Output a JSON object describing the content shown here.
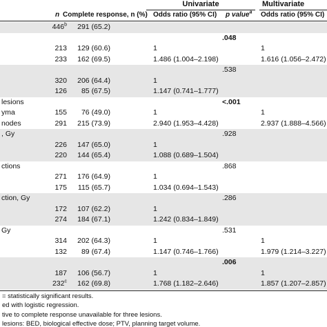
{
  "header": {
    "univariate": "Univariate",
    "multivariate": "Multivariate",
    "columns": {
      "n": "n",
      "complete_response": "Complete response, n (%)",
      "or_uni": "Odds ratio (95% CI)",
      "p": "p value",
      "p_note": "a",
      "or_multi": "Odds ratio (95% CI)"
    }
  },
  "rows": [
    {
      "n": "446",
      "n_note": "b",
      "cr": "291 (65.2)"
    },
    {
      "p": ".048"
    },
    {
      "n": "213",
      "cr": "129 (60.6)",
      "or_uni": "1",
      "or_multi": "1"
    },
    {
      "n": "233",
      "cr": "162 (69.5)",
      "or_uni": "1.486 (1.004–2.198)",
      "or_multi": "1.616 (1.056–2.472)"
    },
    {
      "p": ".538"
    },
    {
      "n": "320",
      "cr": "206 (64.4)",
      "or_uni": "1"
    },
    {
      "n": "126",
      "cr": "85 (67.5)",
      "or_uni": "1.147 (0.741–1.777)"
    },
    {
      "label": "lesions",
      "p": "<.001"
    },
    {
      "label": "yma",
      "n": "155",
      "cr": "76 (49.0)",
      "or_uni": "1",
      "or_multi": "1"
    },
    {
      "label": "nodes",
      "n": "291",
      "cr": "215 (73.9)",
      "or_uni": "2.940 (1.953–4.428)",
      "or_multi": "2.937 (1.888–4.566)"
    },
    {
      "label": ", Gy",
      "p": ".928"
    },
    {
      "n": "226",
      "cr": "147 (65.0)",
      "or_uni": "1"
    },
    {
      "n": "220",
      "cr": "144 (65.4)",
      "or_uni": "1.088 (0.689–1.504)"
    },
    {
      "label": "ctions",
      "p": ".868"
    },
    {
      "n": "271",
      "cr": "176 (64.9)",
      "or_uni": "1"
    },
    {
      "n": "175",
      "cr": "115 (65.7)",
      "or_uni": "1.034 (0.694–1.543)"
    },
    {
      "label": "ction, Gy",
      "p": ".286"
    },
    {
      "n": "172",
      "cr": "107 (62.2)",
      "or_uni": "1"
    },
    {
      "n": "274",
      "cr": "184 (67.1)",
      "or_uni": "1.242 (0.834–1.849)"
    },
    {
      "label": "Gy",
      "p": ".531"
    },
    {
      "n": "314",
      "cr": "202 (64.3)",
      "or_uni": "1",
      "or_multi": "1"
    },
    {
      "n": "132",
      "cr": "89 (67.4)",
      "or_uni": "1.147 (0.746–1.766)",
      "or_multi": "1.979 (1.214–3.227)"
    },
    {
      "p": ".006"
    },
    {
      "n": "187",
      "cr": "106 (56.7)",
      "or_uni": "1",
      "or_multi": "1"
    },
    {
      "n": "232",
      "n_note": "c",
      "cr": "162 (69.8)",
      "or_uni": "1.768 (1.182–2.646)",
      "or_multi": "1.857 (1.207–2.857)"
    }
  ],
  "footnotes": [
    "= statistically significant results.",
    "ed with logistic regression.",
    "tive to complete response unavailable for three lesions.",
    "lesions: BED, biological effective dose; PTV, planning target volume."
  ]
}
